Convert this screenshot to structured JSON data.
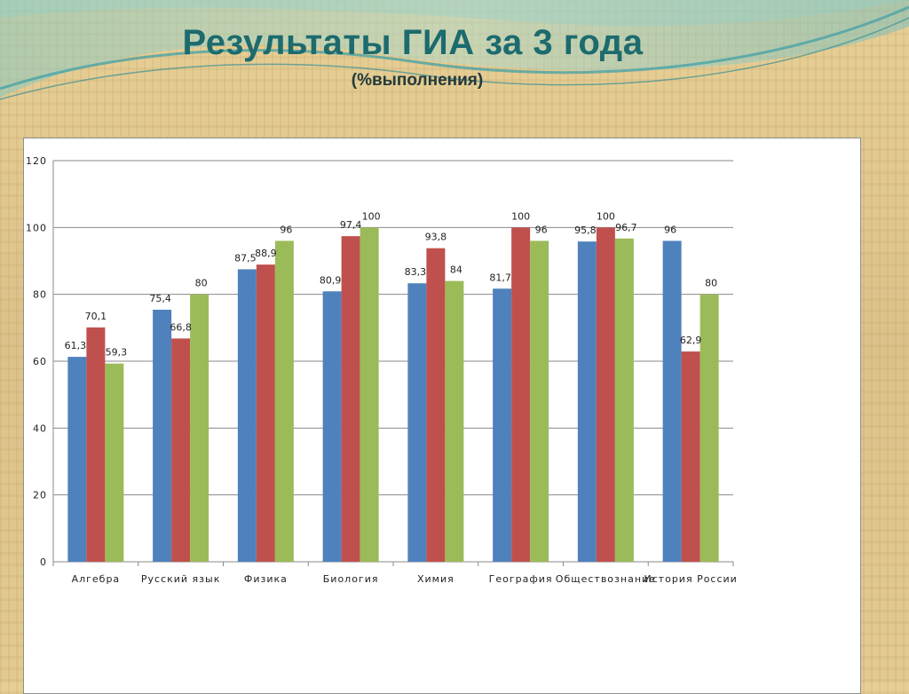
{
  "title": "Результаты ГИА за 3 года",
  "subtitle": "(%выполнения)",
  "colors": {
    "title": "#1c6b6e",
    "series": [
      "#4f81bd",
      "#c0504d",
      "#9bbb59"
    ]
  },
  "chart_data": {
    "type": "bar",
    "categories": [
      "Алгебра",
      "Русский язык",
      "Физика",
      "Биология",
      "Химия",
      "География",
      "Обществознание",
      "История России"
    ],
    "series": [
      {
        "values": [
          61.3,
          75.4,
          87.5,
          80.9,
          83.3,
          81.7,
          95.8,
          96
        ]
      },
      {
        "values": [
          70.1,
          66.8,
          88.9,
          97.4,
          93.8,
          100,
          100,
          62.9
        ]
      },
      {
        "values": [
          59.3,
          80,
          96,
          100,
          84,
          96,
          96.7,
          80
        ]
      }
    ],
    "data_labels": [
      [
        "61,3",
        "75,4",
        "87,5",
        "80,9",
        "83,3",
        "81,7",
        "95,8",
        "96"
      ],
      [
        "70,1",
        "66,8",
        "88,9",
        "97,4",
        "93,8",
        "100",
        "100",
        "62,9"
      ],
      [
        "59,3",
        "80",
        "96",
        "100",
        "84",
        "96",
        "96,7",
        "80"
      ]
    ],
    "ylim": [
      0,
      120
    ],
    "yticks": [
      0,
      20,
      40,
      60,
      80,
      100,
      120
    ],
    "grid": true,
    "legend": "none"
  }
}
